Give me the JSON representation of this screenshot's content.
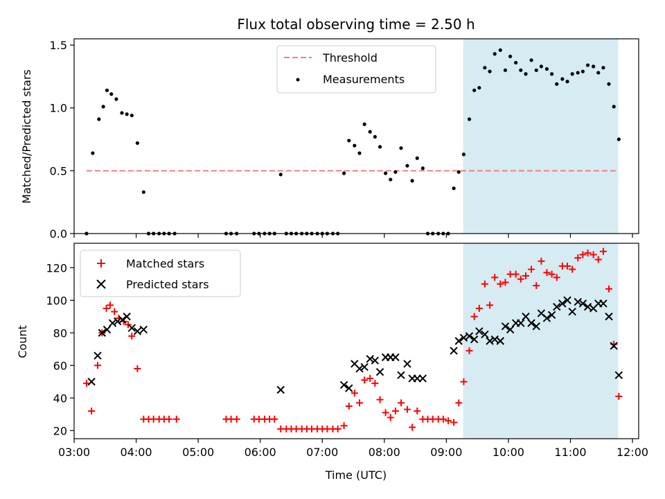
{
  "title": "Flux total observing time = 2.50 h",
  "chart_data": [
    {
      "type": "scatter",
      "panel": "top",
      "ylabel": "Matched/Predicted stars",
      "ylim": [
        0,
        1.55
      ],
      "yticks": [
        0,
        0.5,
        1.0,
        1.5
      ],
      "ytick_labels": [
        "0.0",
        "0.5",
        "1.0",
        "1.5"
      ],
      "xlim": [
        3.0,
        12.1
      ],
      "shaded_region": [
        9.27,
        11.77
      ],
      "legend_position": "upper-center",
      "legend": [
        {
          "label": "Threshold",
          "color": "#f08080",
          "style": "dashed-line"
        },
        {
          "label": "Measurements",
          "color": "#000000",
          "style": "dot"
        }
      ],
      "series": [
        {
          "name": "Threshold",
          "kind": "line",
          "color": "#f08080",
          "x": [
            3.2,
            11.77
          ],
          "values": [
            0.5,
            0.5
          ]
        },
        {
          "name": "Measurements",
          "kind": "scatter",
          "color": "#000000",
          "x": [
            3.2,
            3.3,
            3.4,
            3.47,
            3.53,
            3.6,
            3.68,
            3.77,
            3.85,
            3.93,
            4.02,
            4.12,
            4.2,
            4.28,
            4.37,
            4.45,
            4.53,
            4.62,
            5.45,
            5.53,
            5.62,
            5.9,
            5.98,
            6.07,
            6.15,
            6.23,
            6.33,
            6.42,
            6.5,
            6.58,
            6.67,
            6.75,
            6.83,
            6.92,
            7.0,
            7.08,
            7.17,
            7.25,
            7.35,
            7.43,
            7.52,
            7.6,
            7.68,
            7.77,
            7.85,
            7.93,
            8.02,
            8.1,
            8.18,
            8.27,
            8.37,
            8.45,
            8.53,
            8.62,
            8.7,
            8.78,
            8.87,
            8.95,
            9.03,
            9.12,
            9.2,
            9.28,
            9.37,
            9.45,
            9.53,
            9.62,
            9.7,
            9.78,
            9.87,
            9.95,
            10.03,
            10.12,
            10.2,
            10.28,
            10.37,
            10.45,
            10.53,
            10.62,
            10.7,
            10.78,
            10.87,
            10.95,
            11.03,
            11.12,
            11.2,
            11.28,
            11.37,
            11.45,
            11.53,
            11.62,
            11.7,
            11.78
          ],
          "values": [
            0,
            0.64,
            0.91,
            1.01,
            1.14,
            1.11,
            1.07,
            0.96,
            0.95,
            0.94,
            0.72,
            0.33,
            0,
            0,
            0,
            0,
            0,
            0,
            0,
            0,
            0,
            0,
            0,
            0,
            0,
            0,
            0.47,
            0,
            0,
            0,
            0,
            0,
            0,
            0,
            0,
            0,
            0,
            0,
            0.48,
            0.74,
            0.7,
            0.64,
            0.87,
            0.81,
            0.77,
            0.69,
            0.48,
            0.43,
            0.49,
            0.68,
            0.54,
            0.42,
            0.6,
            0.52,
            0,
            0,
            0,
            0,
            0,
            0.36,
            0.49,
            0.63,
            0.91,
            1.14,
            1.16,
            1.32,
            1.29,
            1.43,
            1.46,
            1.3,
            1.41,
            1.36,
            1.3,
            1.27,
            1.38,
            1.3,
            1.33,
            1.31,
            1.27,
            1.19,
            1.23,
            1.21,
            1.27,
            1.28,
            1.29,
            1.34,
            1.33,
            1.28,
            1.32,
            1.19,
            1.01,
            0.75
          ]
        }
      ]
    },
    {
      "type": "scatter",
      "panel": "bottom",
      "xlabel": "Time (UTC)",
      "ylabel": "Count",
      "ylim": [
        15,
        135
      ],
      "yticks": [
        20,
        40,
        60,
        80,
        100,
        120
      ],
      "xlim": [
        3.0,
        12.1
      ],
      "xticks": [
        3,
        4,
        5,
        6,
        7,
        8,
        9,
        10,
        11,
        12
      ],
      "xtick_labels": [
        "03:00",
        "04:00",
        "05:00",
        "06:00",
        "07:00",
        "08:00",
        "09:00",
        "10:00",
        "11:00",
        "12:00"
      ],
      "shaded_region": [
        9.27,
        11.77
      ],
      "legend_position": "upper-left",
      "legend": [
        {
          "label": "Matched stars",
          "color": "#ff0000",
          "style": "plus"
        },
        {
          "label": "Predicted stars",
          "color": "#000000",
          "style": "cross"
        }
      ],
      "series": [
        {
          "name": "Matched stars",
          "kind": "plus",
          "color": "#ff0000",
          "x": [
            3.2,
            3.28,
            3.38,
            3.45,
            3.52,
            3.58,
            3.65,
            3.72,
            3.8,
            3.87,
            3.93,
            4.02,
            4.12,
            4.2,
            4.28,
            4.37,
            4.45,
            4.53,
            4.65,
            5.45,
            5.53,
            5.62,
            5.9,
            5.98,
            6.07,
            6.15,
            6.23,
            6.33,
            6.42,
            6.5,
            6.58,
            6.67,
            6.75,
            6.83,
            6.92,
            7.0,
            7.08,
            7.17,
            7.25,
            7.35,
            7.43,
            7.52,
            7.6,
            7.68,
            7.77,
            7.85,
            7.93,
            8.02,
            8.1,
            8.18,
            8.27,
            8.37,
            8.45,
            8.53,
            8.62,
            8.7,
            8.78,
            8.87,
            8.95,
            9.03,
            9.12,
            9.2,
            9.28,
            9.37,
            9.45,
            9.53,
            9.62,
            9.7,
            9.78,
            9.87,
            9.95,
            10.03,
            10.12,
            10.2,
            10.28,
            10.37,
            10.45,
            10.53,
            10.62,
            10.7,
            10.78,
            10.87,
            10.95,
            11.03,
            11.12,
            11.2,
            11.28,
            11.37,
            11.45,
            11.53,
            11.62,
            11.7,
            11.78
          ],
          "values": [
            49,
            32,
            60,
            80,
            95,
            97,
            93,
            89,
            87,
            85,
            78,
            58,
            27,
            27,
            27,
            27,
            27,
            27,
            27,
            27,
            27,
            27,
            27,
            27,
            27,
            27,
            27,
            21,
            21,
            21,
            21,
            21,
            21,
            21,
            21,
            21,
            21,
            21,
            21,
            23,
            35,
            43,
            37,
            51,
            52,
            49,
            39,
            31,
            28,
            32,
            37,
            33,
            22,
            32,
            27,
            27,
            27,
            27,
            27,
            26,
            25,
            37,
            50,
            69,
            90,
            95,
            110,
            97,
            114,
            110,
            111,
            116,
            116,
            113,
            115,
            119,
            109,
            124,
            117,
            116,
            114,
            121,
            121,
            119,
            126,
            128,
            129,
            128,
            125,
            130,
            107,
            73,
            41
          ]
        },
        {
          "name": "Predicted stars",
          "kind": "cross",
          "color": "#000000",
          "x": [
            3.28,
            3.38,
            3.45,
            3.53,
            3.62,
            3.7,
            3.78,
            3.85,
            3.93,
            4.02,
            4.12,
            6.33,
            7.35,
            7.43,
            7.52,
            7.6,
            7.68,
            7.77,
            7.85,
            7.93,
            8.02,
            8.1,
            8.18,
            8.27,
            8.37,
            8.45,
            8.53,
            8.62,
            9.12,
            9.2,
            9.28,
            9.37,
            9.45,
            9.53,
            9.62,
            9.7,
            9.78,
            9.87,
            9.95,
            10.03,
            10.12,
            10.2,
            10.28,
            10.37,
            10.45,
            10.53,
            10.62,
            10.7,
            10.78,
            10.87,
            10.95,
            11.03,
            11.12,
            11.2,
            11.28,
            11.37,
            11.45,
            11.53,
            11.62,
            11.7,
            11.78
          ],
          "values": [
            50,
            66,
            80,
            82,
            86,
            87,
            88,
            90,
            83,
            81,
            82,
            45,
            48,
            46,
            61,
            58,
            59,
            64,
            63,
            56,
            65,
            65,
            65,
            54,
            61,
            52,
            52,
            52,
            69,
            75,
            77,
            78,
            76,
            81,
            79,
            75,
            76,
            75,
            84,
            82,
            86,
            86,
            90,
            86,
            84,
            92,
            89,
            91,
            96,
            98,
            100,
            93,
            99,
            98,
            96,
            95,
            98,
            98,
            90,
            72,
            54
          ]
        }
      ]
    }
  ]
}
